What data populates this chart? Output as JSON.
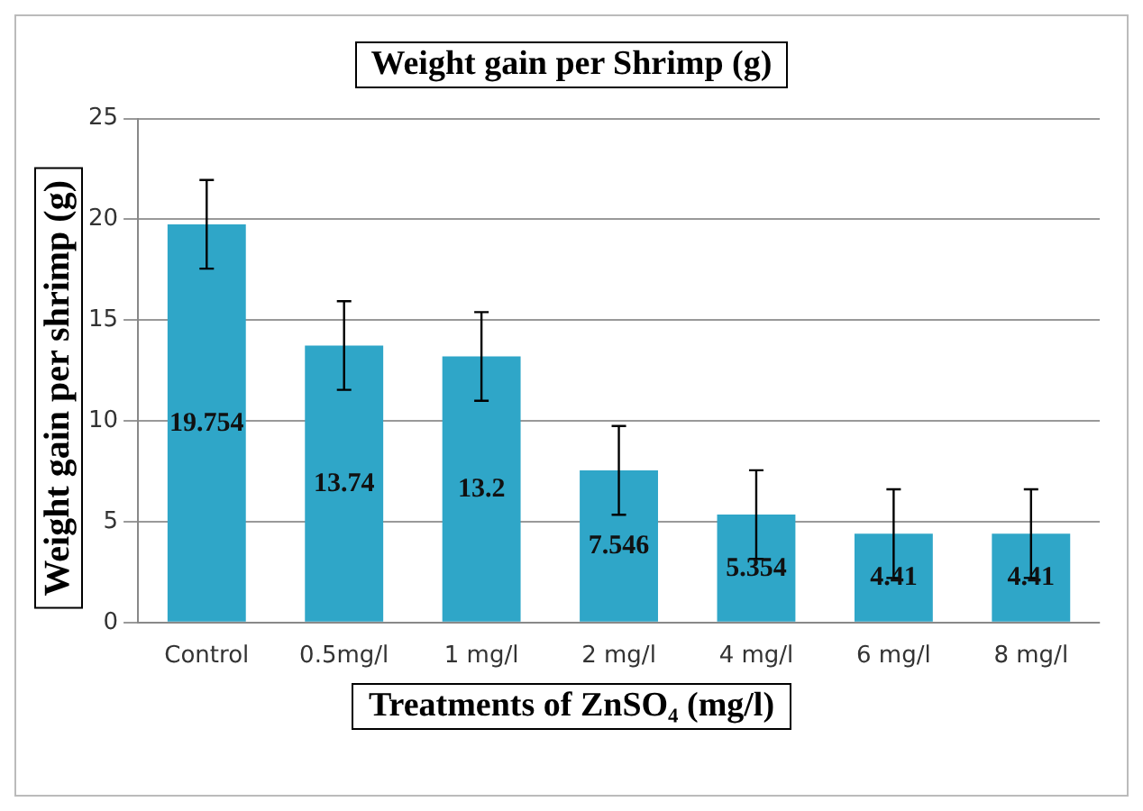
{
  "chart_data": {
    "type": "bar",
    "title": "Weight gain per Shrimp (g)",
    "xlabel": "Treatments of ZnSO₄ (mg/l)",
    "ylabel": "Weight gain per shrimp (g)",
    "categories": [
      "Control",
      "0.5mg/l",
      "1 mg/l",
      "2 mg/l",
      "4 mg/l",
      "6 mg/l",
      "8 mg/l"
    ],
    "values": [
      19.754,
      13.74,
      13.2,
      7.546,
      5.354,
      4.41,
      4.41
    ],
    "errors": [
      2.2,
      2.2,
      2.2,
      2.2,
      2.2,
      2.2,
      2.2
    ],
    "color": "#2fa6c8",
    "ylim": [
      0,
      25
    ],
    "yticks": [
      0,
      5,
      10,
      15,
      20,
      25
    ],
    "grid": "y",
    "data_labels": true,
    "legend": false
  }
}
